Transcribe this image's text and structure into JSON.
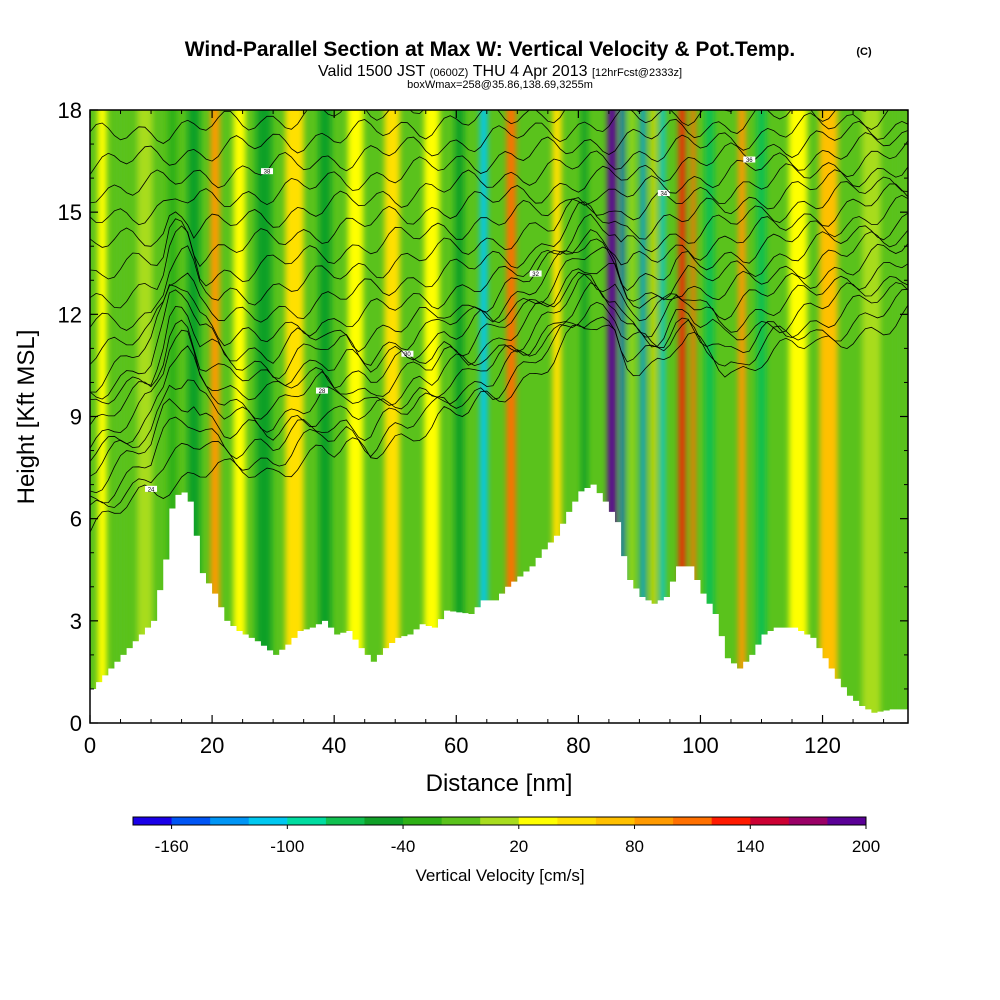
{
  "header": {
    "title_main": "Wind-Parallel Section at Max W: Vertical Velocity & Pot.Temp.",
    "title_copyright": "(C)",
    "valid_prefix": "Valid 1500 JST",
    "valid_utc": "(0600Z)",
    "valid_date": "THU 4 Apr 2013",
    "forecast": "[12hrFcst@2333z]",
    "box_info": "boxWmax=258@35.86,138.69,3255m"
  },
  "chart_data": {
    "type": "heatmap",
    "xlabel": "Distance [nm]",
    "ylabel": "Height [Kft MSL]",
    "xlim": [
      0,
      134
    ],
    "ylim": [
      0,
      18
    ],
    "x_ticks": [
      0,
      20,
      40,
      60,
      80,
      100,
      120
    ],
    "y_ticks": [
      0,
      3,
      6,
      9,
      12,
      15,
      18
    ],
    "background_color": "#5ac21c",
    "colorbar": {
      "label": "Vertical Velocity [cm/s]",
      "tick_labels": [
        "-160",
        "-100",
        "-40",
        "20",
        "80",
        "140",
        "200"
      ],
      "colors": [
        "#1a00e8",
        "#0055f5",
        "#0095f5",
        "#00c8f0",
        "#00dca0",
        "#10c050",
        "#10a028",
        "#2eb016",
        "#5ac21c",
        "#a8dc1e",
        "#ffff00",
        "#ffe000",
        "#ffc000",
        "#ff9a00",
        "#ff7000",
        "#ff1a00",
        "#cc0033",
        "#9a0066",
        "#5a0096"
      ]
    },
    "terrain": [
      [
        0,
        1.0
      ],
      [
        2,
        1.4
      ],
      [
        4,
        1.8
      ],
      [
        6,
        2.2
      ],
      [
        8,
        2.6
      ],
      [
        10,
        3.0
      ],
      [
        12,
        4.8
      ],
      [
        13,
        6.3
      ],
      [
        14.5,
        6.9
      ],
      [
        16,
        6.5
      ],
      [
        17,
        5.5
      ],
      [
        18,
        4.4
      ],
      [
        20,
        3.8
      ],
      [
        22,
        3.0
      ],
      [
        24,
        2.7
      ],
      [
        27,
        2.4
      ],
      [
        30,
        2.0
      ],
      [
        32,
        2.3
      ],
      [
        34,
        2.7
      ],
      [
        36,
        2.8
      ],
      [
        38,
        3.0
      ],
      [
        40,
        2.6
      ],
      [
        42,
        2.7
      ],
      [
        44,
        2.2
      ],
      [
        46,
        1.8
      ],
      [
        48,
        2.2
      ],
      [
        50,
        2.5
      ],
      [
        52,
        2.6
      ],
      [
        54,
        2.9
      ],
      [
        56,
        2.8
      ],
      [
        58,
        3.3
      ],
      [
        62,
        3.2
      ],
      [
        64,
        3.6
      ],
      [
        66,
        3.6
      ],
      [
        68,
        4.0
      ],
      [
        70,
        4.3
      ],
      [
        72,
        4.6
      ],
      [
        74,
        5.1
      ],
      [
        76,
        5.5
      ],
      [
        78,
        6.2
      ],
      [
        80,
        6.8
      ],
      [
        82,
        7.0
      ],
      [
        84,
        6.5
      ],
      [
        86,
        5.9
      ],
      [
        87,
        4.9
      ],
      [
        88,
        4.2
      ],
      [
        90,
        3.7
      ],
      [
        92,
        3.5
      ],
      [
        94,
        3.7
      ],
      [
        96,
        4.6
      ],
      [
        98,
        4.6
      ],
      [
        100,
        3.8
      ],
      [
        102,
        3.2
      ],
      [
        104,
        1.9
      ],
      [
        106,
        1.6
      ],
      [
        108,
        2.0
      ],
      [
        110,
        2.6
      ],
      [
        112,
        2.8
      ],
      [
        115,
        2.8
      ],
      [
        118,
        2.5
      ],
      [
        120,
        1.9
      ],
      [
        122,
        1.3
      ],
      [
        124,
        0.8
      ],
      [
        126,
        0.5
      ],
      [
        128,
        0.3
      ],
      [
        131,
        0.4
      ],
      [
        134,
        0.4
      ]
    ],
    "velocity_columns": [
      {
        "x": 2,
        "w": 1.5,
        "value": 20
      },
      {
        "x": 5,
        "w": 1.5,
        "value": -20
      },
      {
        "x": 9,
        "w": 2.5,
        "value": 0
      },
      {
        "x": 13.5,
        "w": 1.5,
        "value": -30
      },
      {
        "x": 17,
        "w": 2,
        "value": -60
      },
      {
        "x": 20.5,
        "w": 1.5,
        "value": 80
      },
      {
        "x": 24.5,
        "w": 2,
        "value": 30
      },
      {
        "x": 28.5,
        "w": 2.5,
        "value": -50
      },
      {
        "x": 33.5,
        "w": 3,
        "value": 45
      },
      {
        "x": 38.5,
        "w": 2,
        "value": -60
      },
      {
        "x": 43.5,
        "w": 2.5,
        "value": 35
      },
      {
        "x": 49.5,
        "w": 2.5,
        "value": 40
      },
      {
        "x": 56,
        "w": 2.5,
        "value": 35
      },
      {
        "x": 60.5,
        "w": 1.5,
        "value": -60
      },
      {
        "x": 64.5,
        "w": 1.2,
        "value": -110
      },
      {
        "x": 69,
        "w": 1.5,
        "value": 110
      },
      {
        "x": 76.5,
        "w": 1.5,
        "value": 50
      },
      {
        "x": 81,
        "w": 1,
        "value": -60
      },
      {
        "x": 85.5,
        "w": 1.4,
        "value": 190
      },
      {
        "x": 87.2,
        "w": 0.6,
        "value": -150
      },
      {
        "x": 88.8,
        "w": 0.7,
        "value": 0
      },
      {
        "x": 90.6,
        "w": 0.7,
        "value": -130
      },
      {
        "x": 92.3,
        "w": 0.6,
        "value": 40
      },
      {
        "x": 93.8,
        "w": 0.7,
        "value": -110
      },
      {
        "x": 97,
        "w": 1,
        "value": 120
      },
      {
        "x": 98.8,
        "w": 0.8,
        "value": 100
      },
      {
        "x": 101.5,
        "w": 1.5,
        "value": -70
      },
      {
        "x": 106.8,
        "w": 1.2,
        "value": 90
      },
      {
        "x": 110,
        "w": 1.5,
        "value": -70
      },
      {
        "x": 116,
        "w": 3,
        "value": 25
      },
      {
        "x": 121,
        "w": 3,
        "value": 60
      },
      {
        "x": 128,
        "w": 3,
        "value": 15
      },
      {
        "x": 132.5,
        "w": 1.5,
        "value": -20
      }
    ],
    "isentropes": [
      {
        "y0": 2.0,
        "y1": 12.0,
        "label": "24"
      },
      {
        "y0": 2.8,
        "y1": 12.4,
        "label": ""
      },
      {
        "y0": 3.6,
        "y1": 12.8,
        "label": ""
      },
      {
        "y0": 4.4,
        "y1": 13.2,
        "label": ""
      },
      {
        "y0": 5.2,
        "y1": 13.6,
        "label": "28"
      },
      {
        "y0": 6.0,
        "y1": 14.0,
        "label": ""
      },
      {
        "y0": 6.8,
        "y1": 14.4,
        "label": "30"
      },
      {
        "y0": 7.6,
        "y1": 14.8,
        "label": ""
      },
      {
        "y0": 8.4,
        "y1": 15.2,
        "label": ""
      },
      {
        "y0": 9.2,
        "y1": 15.6,
        "label": "32"
      },
      {
        "y0": 10.0,
        "y1": 16.0,
        "label": ""
      },
      {
        "y0": 10.8,
        "y1": 16.4,
        "label": ""
      },
      {
        "y0": 11.6,
        "y1": 16.8,
        "label": "34"
      },
      {
        "y0": 12.4,
        "y1": 17.2,
        "label": ""
      },
      {
        "y0": 13.2,
        "y1": 17.6,
        "label": "36"
      },
      {
        "y0": 14.0,
        "y1": 18.0,
        "label": ""
      },
      {
        "y0": 14.8,
        "y1": 18.4,
        "label": ""
      },
      {
        "y0": 15.6,
        "y1": 18.8,
        "label": "38"
      },
      {
        "y0": 16.4,
        "y1": 19.2,
        "label": ""
      },
      {
        "y0": 17.2,
        "y1": 19.6,
        "label": ""
      }
    ]
  }
}
